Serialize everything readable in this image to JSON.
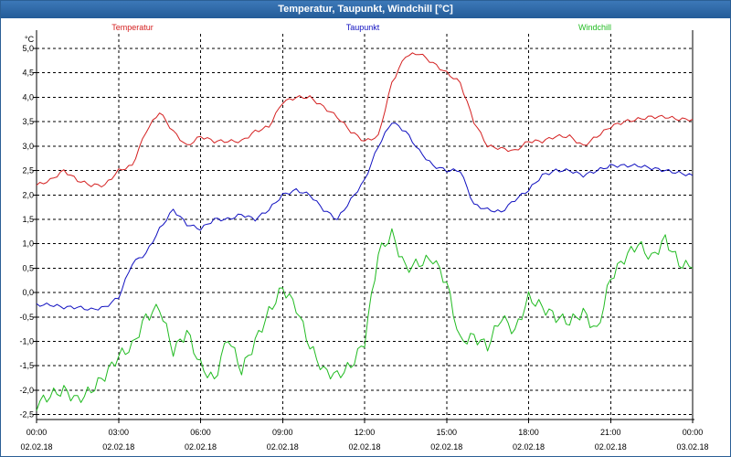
{
  "window": {
    "title": "Temperatur, Taupunkt, Windchill [°C]"
  },
  "chart_data": {
    "type": "line",
    "title": "Temperatur, Taupunkt, Windchill [°C]",
    "y_unit": "°C",
    "ylim": [
      -2.6,
      5.3
    ],
    "xlim": [
      0,
      24
    ],
    "y_ticks": [
      "-2,5",
      "-2,0",
      "-1,5",
      "-1,0",
      "-0,5",
      "0,0",
      "0,5",
      "1,0",
      "1,5",
      "2,0",
      "2,5",
      "3,0",
      "3,5",
      "4,0",
      "4,5",
      "5,0"
    ],
    "y_tick_values": [
      -2.5,
      -2.0,
      -1.5,
      -1.0,
      -0.5,
      0.0,
      0.5,
      1.0,
      1.5,
      2.0,
      2.5,
      3.0,
      3.5,
      4.0,
      4.5,
      5.0
    ],
    "x_ticks": [
      {
        "time": "00:00",
        "date": "02.02.18",
        "hour": 0
      },
      {
        "time": "03:00",
        "date": "02.02.18",
        "hour": 3
      },
      {
        "time": "06:00",
        "date": "02.02.18",
        "hour": 6
      },
      {
        "time": "09:00",
        "date": "02.02.18",
        "hour": 9
      },
      {
        "time": "12:00",
        "date": "02.02.18",
        "hour": 12
      },
      {
        "time": "15:00",
        "date": "02.02.18",
        "hour": 15
      },
      {
        "time": "18:00",
        "date": "02.02.18",
        "hour": 18
      },
      {
        "time": "21:00",
        "date": "02.02.18",
        "hour": 21
      },
      {
        "time": "00:00",
        "date": "03.02.18",
        "hour": 24
      }
    ],
    "grid": true,
    "x": [
      0,
      0.5,
      1,
      1.5,
      2,
      2.5,
      3,
      3.5,
      4,
      4.5,
      5,
      5.5,
      6,
      6.5,
      7,
      7.5,
      8,
      8.5,
      9,
      9.5,
      10,
      10.5,
      11,
      11.5,
      12,
      12.5,
      13,
      13.5,
      14,
      14.5,
      15,
      15.5,
      16,
      16.5,
      17,
      17.5,
      18,
      18.5,
      19,
      19.5,
      20,
      20.5,
      21,
      21.5,
      22,
      22.5,
      23,
      23.5,
      24
    ],
    "series": [
      {
        "name": "Temperatur",
        "color": "#d42020",
        "values": [
          2.2,
          2.3,
          2.5,
          2.3,
          2.2,
          2.2,
          2.5,
          2.6,
          3.3,
          3.7,
          3.3,
          3.0,
          3.2,
          3.1,
          3.1,
          3.1,
          3.3,
          3.4,
          3.9,
          4.0,
          4.0,
          3.8,
          3.6,
          3.3,
          3.1,
          3.2,
          4.3,
          4.85,
          4.9,
          4.7,
          4.5,
          4.3,
          3.5,
          3.0,
          2.95,
          2.9,
          3.1,
          3.1,
          3.2,
          3.2,
          3.0,
          3.2,
          3.4,
          3.5,
          3.55,
          3.6,
          3.6,
          3.55,
          3.55
        ]
      },
      {
        "name": "Taupunkt",
        "color": "#1010c0",
        "values": [
          -0.25,
          -0.25,
          -0.3,
          -0.3,
          -0.35,
          -0.3,
          -0.1,
          0.6,
          0.8,
          1.3,
          1.7,
          1.4,
          1.3,
          1.5,
          1.5,
          1.6,
          1.5,
          1.7,
          2.0,
          2.1,
          2.0,
          1.7,
          1.5,
          1.9,
          2.3,
          3.0,
          3.5,
          3.3,
          2.9,
          2.6,
          2.5,
          2.5,
          1.8,
          1.7,
          1.65,
          1.9,
          2.1,
          2.4,
          2.5,
          2.5,
          2.4,
          2.5,
          2.6,
          2.6,
          2.6,
          2.55,
          2.5,
          2.45,
          2.4
        ]
      },
      {
        "name": "Windchill",
        "color": "#22bb22",
        "values": [
          -2.3,
          -2.1,
          -2.0,
          -2.2,
          -2.0,
          -1.7,
          -1.3,
          -1.1,
          -0.5,
          -0.3,
          -1.2,
          -0.8,
          -1.5,
          -1.8,
          -0.9,
          -1.6,
          -1.0,
          -0.4,
          0.1,
          -0.3,
          -1.1,
          -1.6,
          -1.7,
          -1.5,
          -1.0,
          0.8,
          1.2,
          0.5,
          0.6,
          0.7,
          0.2,
          -1.0,
          -0.9,
          -1.1,
          -0.5,
          -0.8,
          -0.1,
          -0.3,
          -0.5,
          -0.6,
          -0.4,
          -0.8,
          0.3,
          0.7,
          1.0,
          0.7,
          1.1,
          0.6,
          0.5
        ]
      }
    ]
  }
}
